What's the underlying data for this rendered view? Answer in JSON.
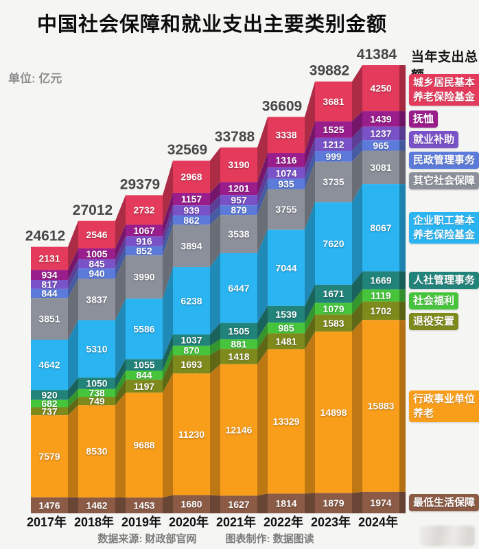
{
  "title": "中国社会保障和就业支出主要类别金额",
  "unit_label": "单位: 亿元",
  "total_annotation": "当年支出总额",
  "footer": {
    "source": "数据来源: 财政部官网",
    "maker": "图表制作: 数据图读"
  },
  "chart_data": {
    "type": "area",
    "stacked": true,
    "grid": false,
    "legend_position": "right",
    "x": [
      "2017年",
      "2018年",
      "2019年",
      "2020年",
      "2021年",
      "2022年",
      "2023年",
      "2024年"
    ],
    "totals": [
      24612,
      27012,
      29379,
      32569,
      33788,
      36609,
      39882,
      41384
    ],
    "ylim": [
      0,
      41384
    ],
    "series": [
      {
        "name": "城乡居民基本养老保险基金",
        "color": "#e43a5b",
        "values": [
          2131,
          2546,
          2732,
          2968,
          3190,
          3338,
          3681,
          4250
        ]
      },
      {
        "name": "抚恤",
        "color": "#9a1d8c",
        "values": [
          934,
          1005,
          1067,
          1157,
          1201,
          1316,
          1525,
          1439
        ]
      },
      {
        "name": "就业补助",
        "color": "#7a52c8",
        "values": [
          817,
          845,
          916,
          939,
          957,
          1074,
          1212,
          1237
        ]
      },
      {
        "name": "民政管理事务",
        "color": "#5c7ad9",
        "values": [
          844,
          940,
          852,
          862,
          879,
          935,
          999,
          965
        ]
      },
      {
        "name": "其它社会保障",
        "color": "#8b909b",
        "values": [
          3851,
          3837,
          3990,
          3894,
          3538,
          3755,
          3735,
          3081
        ]
      },
      {
        "name": "企业职工基本养老保险基金",
        "color": "#2ab5f2",
        "values": [
          4642,
          5310,
          5586,
          6238,
          6447,
          7044,
          7620,
          8067
        ]
      },
      {
        "name": "人社管理事务",
        "color": "#21837a",
        "values": [
          920,
          1050,
          1055,
          1037,
          1505,
          1539,
          1671,
          1669
        ]
      },
      {
        "name": "社会福利",
        "color": "#46c53c",
        "values": [
          682,
          738,
          844,
          870,
          881,
          985,
          1079,
          1119
        ]
      },
      {
        "name": "退役安置",
        "color": "#7e8a1c",
        "values": [
          737,
          749,
          1197,
          1693,
          1418,
          1481,
          1583,
          1702
        ]
      },
      {
        "name": "行政事业单位养老",
        "color": "#f99e1b",
        "values": [
          7579,
          8530,
          9688,
          11230,
          12146,
          13329,
          14898,
          15883
        ]
      },
      {
        "name": "最低生活保障",
        "color": "#8b5b46",
        "values": [
          1476,
          1462,
          1453,
          1680,
          1627,
          1814,
          1879,
          1974
        ]
      }
    ]
  }
}
